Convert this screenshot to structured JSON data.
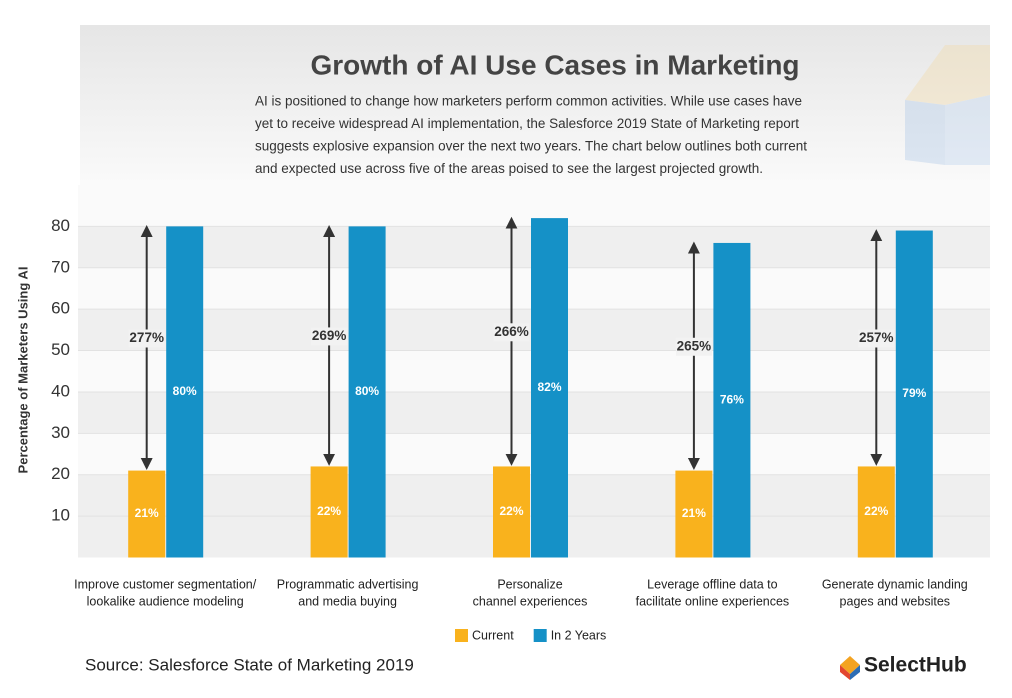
{
  "chart_data": {
    "type": "bar",
    "title": "Growth of AI Use Cases in Marketing",
    "subtitle": [
      "AI is positioned to change how marketers perform common activities. While use cases have",
      "yet to receive widespread AI implementation, the Salesforce 2019 State of Marketing report",
      "suggests explosive expansion over the next two years. The chart below outlines both current",
      "and expected use across five of the areas poised to see the largest projected growth."
    ],
    "y_label": "Percentage of Marketers Using AI",
    "categories": [
      [
        "Improve customer segmentation/",
        "lookalike audience modeling"
      ],
      [
        "Programmatic advertising",
        "and media buying"
      ],
      [
        "Personalize",
        "channel experiences"
      ],
      [
        "Leverage offline data to",
        "facilitate online experiences"
      ],
      [
        "Generate dynamic landing",
        "pages and websites"
      ]
    ],
    "series": [
      {
        "name": "Current",
        "color": "#f9b21d",
        "values": [
          21,
          22,
          22,
          21,
          22
        ],
        "value_labels": [
          "21%",
          "22%",
          "22%",
          "21%",
          "22%"
        ]
      },
      {
        "name": "In 2 Years",
        "color": "#1591c7",
        "values": [
          80,
          80,
          82,
          76,
          79
        ],
        "value_labels": [
          "80%",
          "80%",
          "82%",
          "76%",
          "79%"
        ]
      }
    ],
    "growth_labels": [
      "277%",
      "269%",
      "266%",
      "265%",
      "257%"
    ],
    "ylim": [
      0,
      90
    ],
    "yticks": [
      10,
      20,
      30,
      40,
      50,
      60,
      70,
      80
    ],
    "grid": true,
    "legend": "bottom",
    "source": "Source: Salesforce State of Marketing 2019",
    "logo": "SelectHub"
  }
}
